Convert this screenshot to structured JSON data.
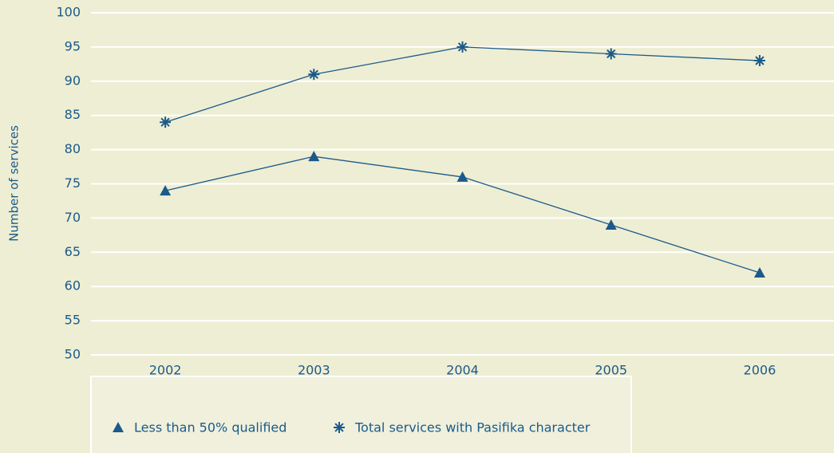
{
  "chart_data": {
    "type": "line",
    "y_label": "Number of services",
    "categories": [
      "2002",
      "2003",
      "2004",
      "2005",
      "2006"
    ],
    "series": [
      {
        "name": "Less than 50% qualified",
        "color": "#1b5a8a",
        "marker": "triangle",
        "values": [
          74,
          79,
          76,
          69,
          62
        ]
      },
      {
        "name": "Total services with Pasifika character",
        "color": "#1b5a8a",
        "marker": "asterisk",
        "values": [
          84,
          91,
          95,
          94,
          93
        ]
      }
    ],
    "ylim": [
      50,
      100
    ],
    "yticks": [
      50,
      55,
      60,
      65,
      70,
      75,
      80,
      85,
      90,
      95,
      100
    ],
    "grid": true,
    "legend": "bottom"
  }
}
